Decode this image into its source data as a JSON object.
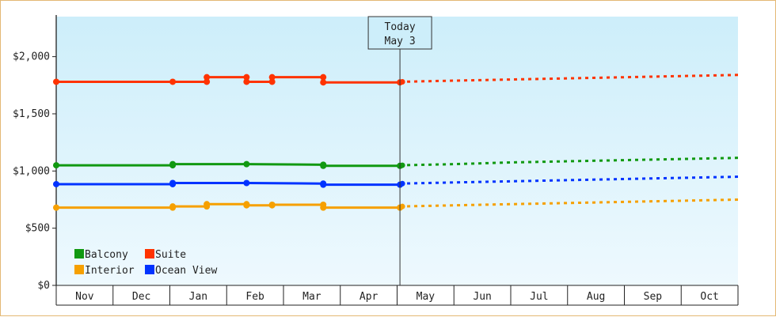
{
  "chart_data": {
    "type": "line",
    "y_ticks": [
      "$0",
      "$500",
      "$1,000",
      "$1,500",
      "$2,000"
    ],
    "y_tick_values": [
      0,
      500,
      1000,
      1500,
      2000
    ],
    "ylim": [
      0,
      2350
    ],
    "months": [
      "Nov",
      "Dec",
      "Jan",
      "Feb",
      "Mar",
      "Apr",
      "May",
      "Jun",
      "Jul",
      "Aug",
      "Sep",
      "Oct"
    ],
    "today": {
      "line1": "Today",
      "line2": "May 3",
      "x": 6.05
    },
    "grid": false,
    "legend_position": "bottom-left",
    "series": [
      {
        "name": "Balcony",
        "color": "#119911",
        "actual": [
          [
            0.0,
            1050
          ],
          [
            2.05,
            1050
          ],
          [
            2.05,
            1060
          ],
          [
            3.35,
            1060
          ],
          [
            4.7,
            1055
          ],
          [
            4.7,
            1045
          ],
          [
            6.05,
            1045
          ]
        ],
        "forecast": [
          [
            6.05,
            1050
          ],
          [
            7.0,
            1060
          ],
          [
            8.0,
            1075
          ],
          [
            9.0,
            1085
          ],
          [
            10.0,
            1095
          ],
          [
            11.0,
            1105
          ],
          [
            12.0,
            1115
          ]
        ]
      },
      {
        "name": "Suite",
        "color": "#ff3300",
        "actual": [
          [
            0.0,
            1780
          ],
          [
            2.05,
            1780
          ],
          [
            2.65,
            1780
          ],
          [
            2.65,
            1820
          ],
          [
            3.35,
            1820
          ],
          [
            3.35,
            1780
          ],
          [
            3.8,
            1780
          ],
          [
            3.8,
            1820
          ],
          [
            4.7,
            1820
          ],
          [
            4.7,
            1775
          ],
          [
            6.05,
            1775
          ]
        ],
        "forecast": [
          [
            6.05,
            1780
          ],
          [
            7.0,
            1790
          ],
          [
            8.0,
            1800
          ],
          [
            9.0,
            1810
          ],
          [
            10.0,
            1820
          ],
          [
            11.0,
            1830
          ],
          [
            12.0,
            1840
          ]
        ]
      },
      {
        "name": "Interior",
        "color": "#f6a000",
        "actual": [
          [
            0.0,
            680
          ],
          [
            2.05,
            680
          ],
          [
            2.05,
            690
          ],
          [
            2.65,
            690
          ],
          [
            2.65,
            710
          ],
          [
            3.35,
            710
          ],
          [
            3.35,
            700
          ],
          [
            3.8,
            700
          ],
          [
            3.8,
            705
          ],
          [
            4.7,
            705
          ],
          [
            4.7,
            680
          ],
          [
            6.05,
            680
          ]
        ],
        "forecast": [
          [
            6.05,
            690
          ],
          [
            7.0,
            700
          ],
          [
            8.0,
            710
          ],
          [
            9.0,
            720
          ],
          [
            10.0,
            730
          ],
          [
            11.0,
            740
          ],
          [
            12.0,
            750
          ]
        ]
      },
      {
        "name": "Ocean View",
        "color": "#0033ff",
        "actual": [
          [
            0.0,
            885
          ],
          [
            2.05,
            885
          ],
          [
            2.05,
            895
          ],
          [
            3.35,
            895
          ],
          [
            4.7,
            890
          ],
          [
            4.7,
            880
          ],
          [
            6.05,
            880
          ]
        ],
        "forecast": [
          [
            6.05,
            890
          ],
          [
            7.0,
            900
          ],
          [
            8.0,
            910
          ],
          [
            9.0,
            920
          ],
          [
            10.0,
            930
          ],
          [
            11.0,
            940
          ],
          [
            12.0,
            950
          ]
        ]
      }
    ],
    "legend_rows": [
      [
        "Balcony",
        "Suite"
      ],
      [
        "Interior",
        "Ocean View"
      ]
    ]
  }
}
